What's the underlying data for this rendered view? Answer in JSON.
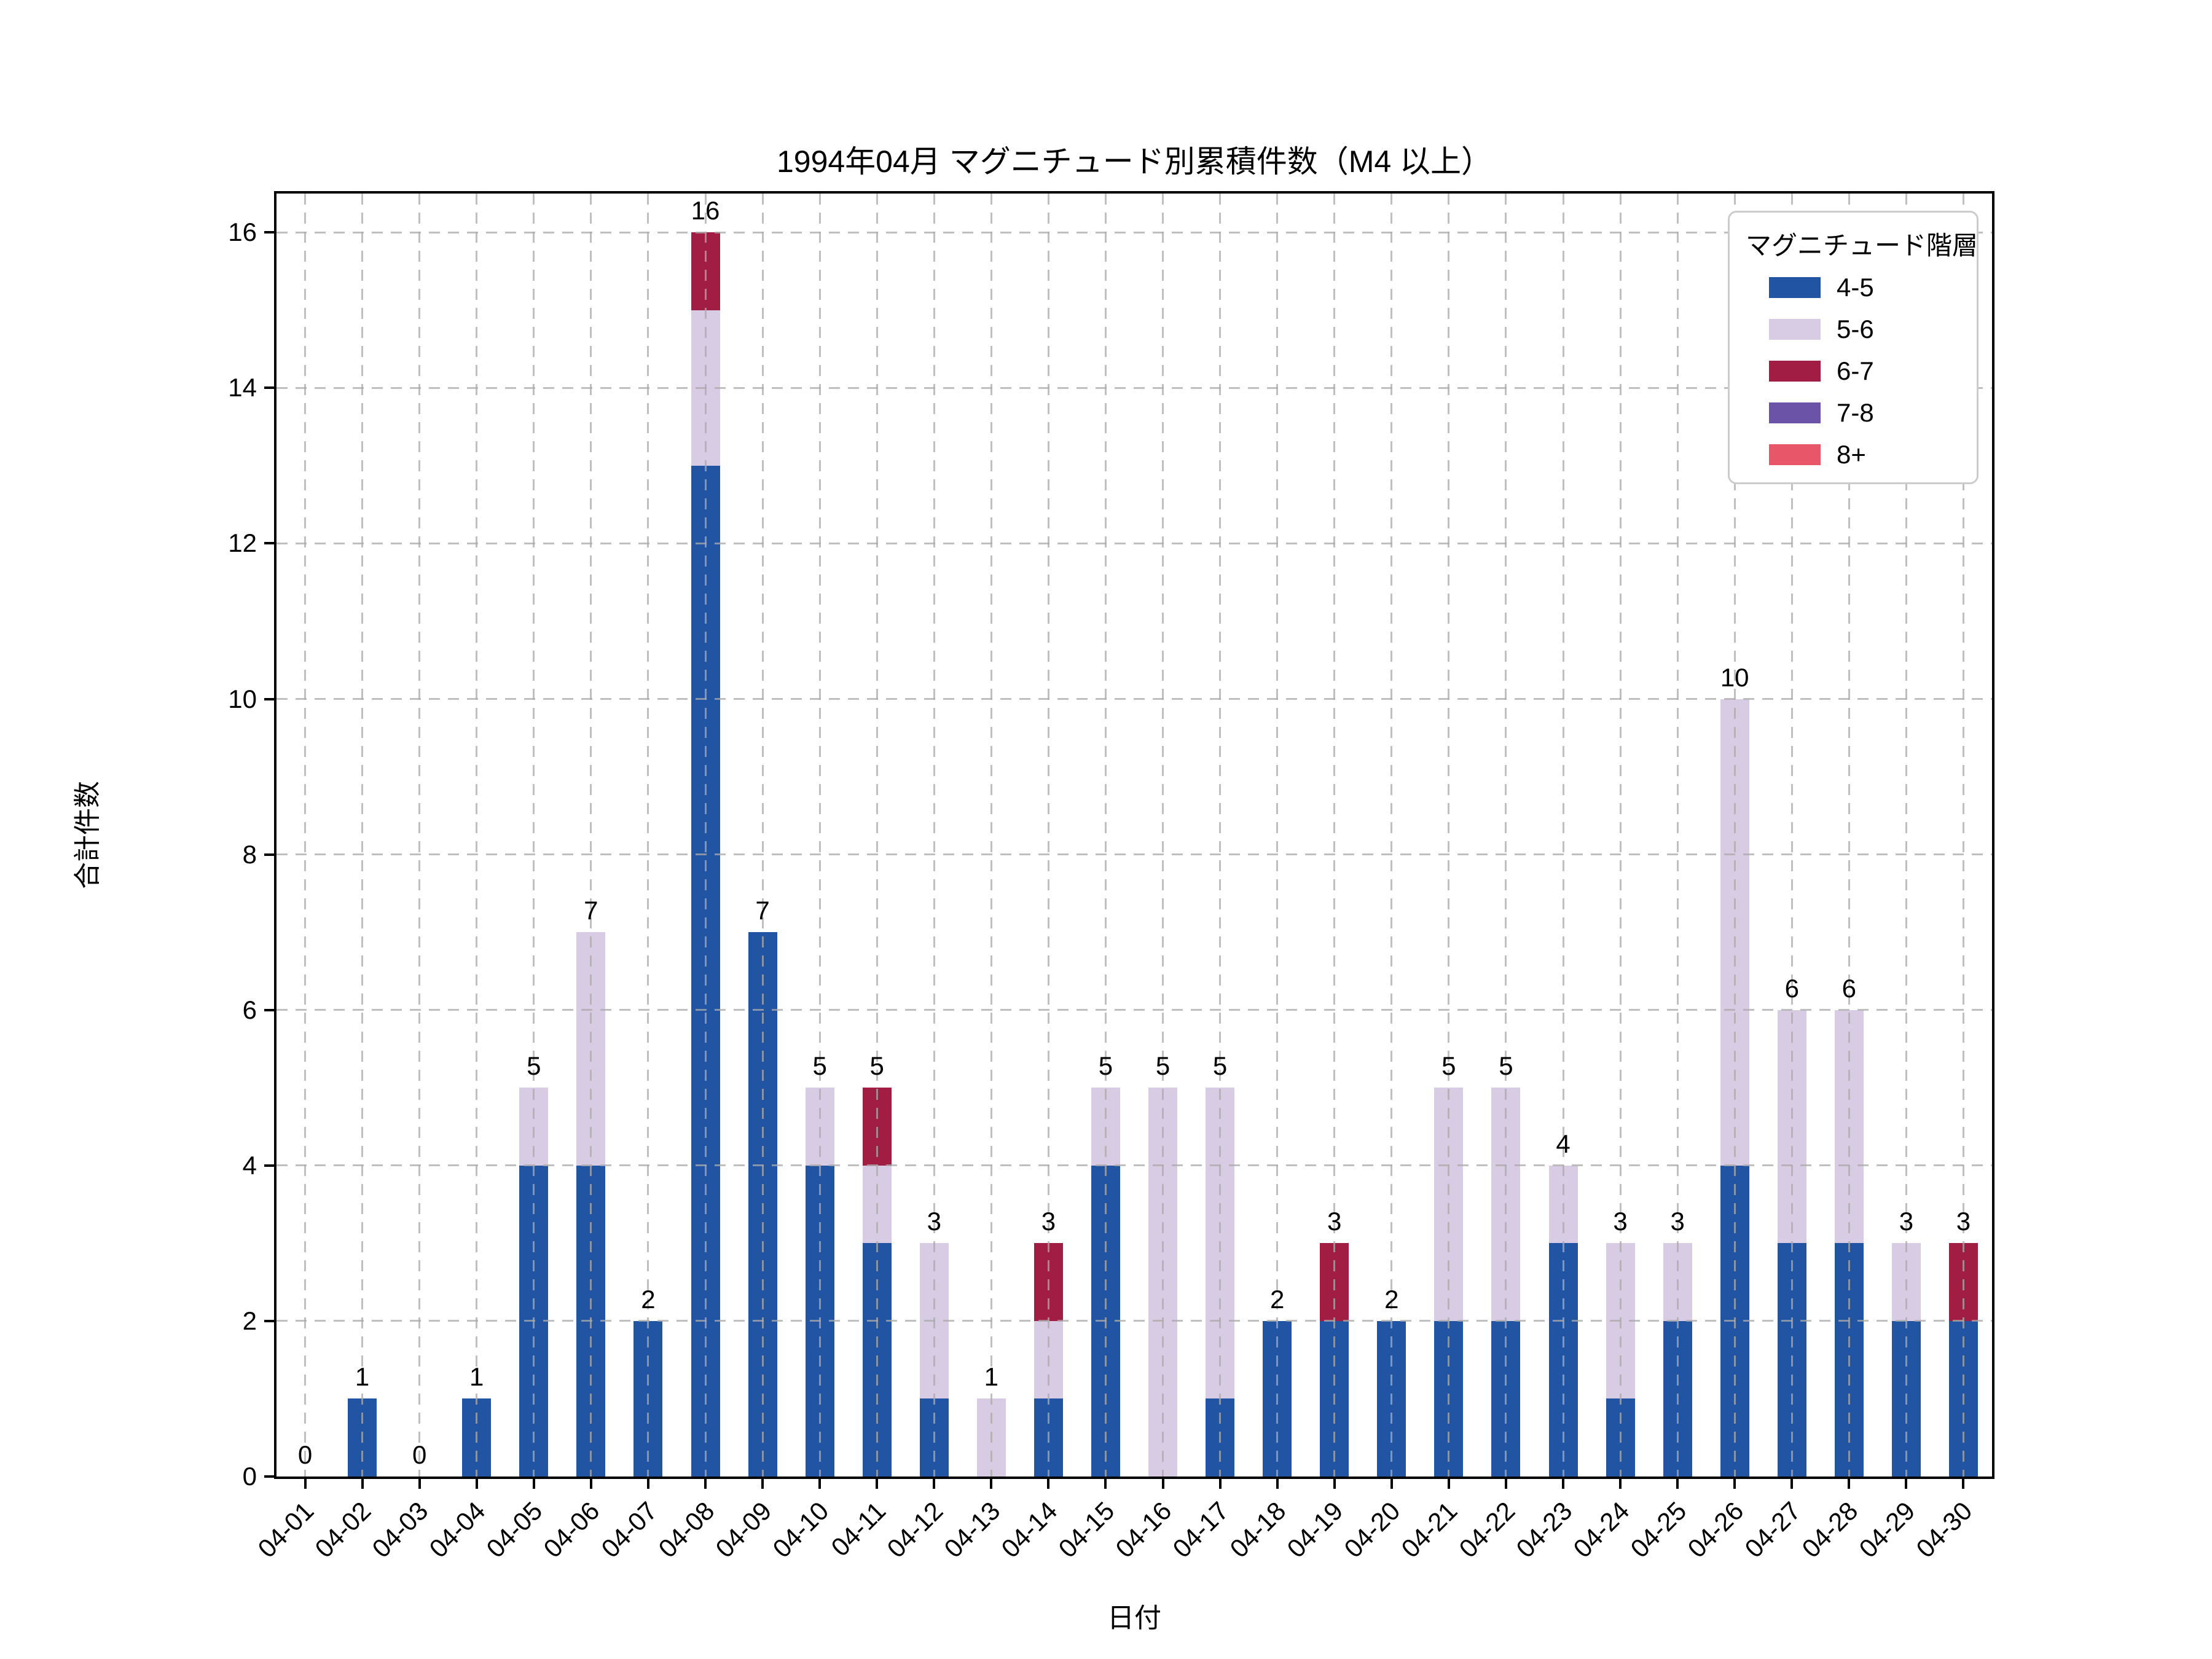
{
  "title": "1994年04月 マグニチュード別累積件数（M4 以上）",
  "chart_data": {
    "type": "bar",
    "stacked": true,
    "title": "1994年04月 マグニチュード別累積件数（M4 以上）",
    "xlabel": "日付",
    "ylabel": "合計件数",
    "ylim": [
      0,
      16.5
    ],
    "yticks": [
      0,
      2,
      4,
      6,
      8,
      10,
      12,
      14,
      16
    ],
    "grid": true,
    "grid_style": "dashed",
    "legend_position": "upper right",
    "legend_title": "マグニチュード階層",
    "categories": [
      "04-01",
      "04-02",
      "04-03",
      "04-04",
      "04-05",
      "04-06",
      "04-07",
      "04-08",
      "04-09",
      "04-10",
      "04-11",
      "04-12",
      "04-13",
      "04-14",
      "04-15",
      "04-16",
      "04-17",
      "04-18",
      "04-19",
      "04-20",
      "04-21",
      "04-22",
      "04-23",
      "04-24",
      "04-25",
      "04-26",
      "04-27",
      "04-28",
      "04-29",
      "04-30"
    ],
    "series": [
      {
        "name": "4-5",
        "color": "#2155A4",
        "values": [
          0,
          1,
          0,
          1,
          4,
          4,
          2,
          13,
          7,
          4,
          3,
          1,
          0,
          1,
          4,
          0,
          1,
          2,
          2,
          2,
          2,
          2,
          3,
          1,
          2,
          4,
          3,
          3,
          2,
          2
        ]
      },
      {
        "name": "5-6",
        "color": "#D8CCE4",
        "values": [
          0,
          0,
          0,
          0,
          1,
          3,
          0,
          2,
          0,
          1,
          1,
          2,
          1,
          1,
          1,
          5,
          4,
          0,
          0,
          0,
          3,
          3,
          1,
          2,
          1,
          6,
          3,
          3,
          1,
          0
        ]
      },
      {
        "name": "6-7",
        "color": "#A21D43",
        "values": [
          0,
          0,
          0,
          0,
          0,
          0,
          0,
          1,
          0,
          0,
          1,
          0,
          0,
          1,
          0,
          0,
          0,
          0,
          1,
          0,
          0,
          0,
          0,
          0,
          0,
          0,
          0,
          0,
          0,
          1
        ]
      },
      {
        "name": "7-8",
        "color": "#6B54A7",
        "values": [
          0,
          0,
          0,
          0,
          0,
          0,
          0,
          0,
          0,
          0,
          0,
          0,
          0,
          0,
          0,
          0,
          0,
          0,
          0,
          0,
          0,
          0,
          0,
          0,
          0,
          0,
          0,
          0,
          0,
          0
        ]
      },
      {
        "name": "8+",
        "color": "#E8566A",
        "values": [
          0,
          0,
          0,
          0,
          0,
          0,
          0,
          0,
          0,
          0,
          0,
          0,
          0,
          0,
          0,
          0,
          0,
          0,
          0,
          0,
          0,
          0,
          0,
          0,
          0,
          0,
          0,
          0,
          0,
          0
        ]
      }
    ],
    "totals": [
      0,
      1,
      0,
      1,
      5,
      7,
      2,
      16,
      7,
      5,
      5,
      3,
      1,
      3,
      5,
      5,
      5,
      2,
      3,
      2,
      5,
      5,
      4,
      3,
      3,
      10,
      6,
      6,
      3,
      3
    ]
  }
}
